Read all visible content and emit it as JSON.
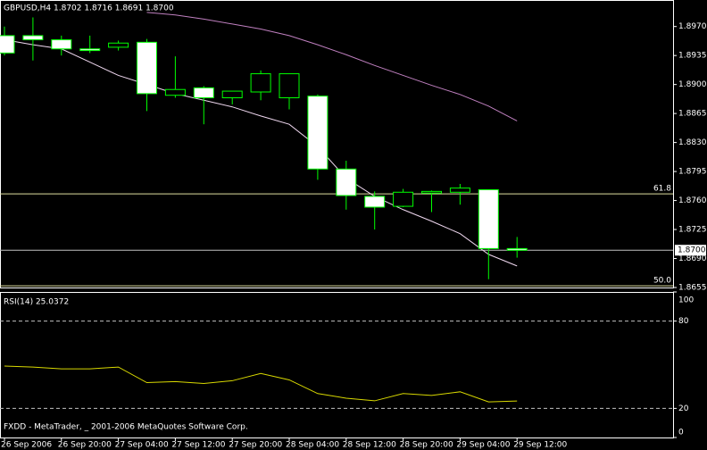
{
  "chart_data": [
    {
      "type": "candlestick",
      "title": "GBPUSD,H4  1.8702 1.8716 1.8691 1.8700",
      "categories": [
        "26 Sep 2006",
        null,
        "26 Sep 20:00",
        null,
        "27 Sep 04:00",
        null,
        "27 Sep 12:00",
        null,
        "27 Sep 20:00",
        null,
        "28 Sep 04:00",
        null,
        "28 Sep 12:00",
        null,
        "28 Sep 20:00",
        null,
        "29 Sep 04:00",
        null,
        "29 Sep 12:00"
      ],
      "open": [
        1.8959,
        1.8959,
        1.8954,
        1.8943,
        1.8945,
        1.8951,
        1.8887,
        1.8896,
        1.8884,
        1.8891,
        1.8884,
        1.8886,
        1.8798,
        1.8765,
        1.8753,
        1.8769,
        1.877,
        1.8773,
        1.8702
      ],
      "high": [
        1.897,
        1.8981,
        1.8959,
        1.8959,
        1.8953,
        1.8955,
        1.8934,
        1.8898,
        1.8892,
        1.8917,
        1.8913,
        1.8888,
        1.8808,
        1.8771,
        1.8774,
        1.8772,
        1.878,
        1.8773,
        1.8716
      ],
      "low": [
        1.8935,
        1.8929,
        1.8935,
        1.8938,
        1.8941,
        1.8868,
        1.8884,
        1.8852,
        1.8876,
        1.8881,
        1.887,
        1.8785,
        1.8749,
        1.8725,
        1.8752,
        1.8746,
        1.8755,
        1.8665,
        1.8691
      ],
      "close": [
        1.8938,
        1.8954,
        1.8943,
        1.8941,
        1.895,
        1.8889,
        1.8894,
        1.8884,
        1.8892,
        1.8913,
        1.8913,
        1.8798,
        1.8766,
        1.8752,
        1.877,
        1.8771,
        1.8775,
        1.8702,
        1.87
      ],
      "up_color": "#000000",
      "down_color": "#ffffff",
      "outline_color": "#00ff00",
      "series": [
        {
          "color": "#c080c0",
          "values": [
            null,
            null,
            null,
            null,
            null,
            1.8987,
            1.8984,
            1.8979,
            1.8973,
            1.8967,
            1.8959,
            1.8948,
            1.8936,
            1.8923,
            1.8911,
            1.8899,
            1.8888,
            1.8874,
            1.8856
          ]
        },
        {
          "color": "#f0d8f0",
          "values": [
            1.8954,
            1.8948,
            1.8943,
            1.8927,
            1.8911,
            1.89,
            1.8889,
            1.8881,
            1.8873,
            1.8862,
            1.8852,
            1.8825,
            1.8787,
            1.8765,
            1.8749,
            1.8735,
            1.872,
            1.8695,
            1.8681
          ]
        }
      ],
      "levels": [
        {
          "value": 1.8768,
          "label": "61.8"
        },
        {
          "value": 1.8657,
          "label": "50.0"
        }
      ],
      "level_color": "#e0e0a0",
      "price_line": {
        "value": 1.87,
        "label": "1.8700"
      },
      "ylim": [
        1.8655,
        1.9002
      ],
      "yticks": [
        {
          "value": 1.897,
          "label": "1.8970"
        },
        {
          "value": 1.8935,
          "label": "1.8935"
        },
        {
          "value": 1.89,
          "label": "1.8900"
        },
        {
          "value": 1.8865,
          "label": "1.8865"
        },
        {
          "value": 1.883,
          "label": "1.8830"
        },
        {
          "value": 1.8795,
          "label": "1.8795"
        },
        {
          "value": 1.876,
          "label": "1.8760"
        },
        {
          "value": 1.8725,
          "label": "1.8725"
        },
        {
          "value": 1.869,
          "label": "1.8690"
        },
        {
          "value": 1.8655,
          "label": "1.8655"
        }
      ]
    },
    {
      "type": "line",
      "title": "RSI(14) 25.0372",
      "color": "#d8d800",
      "values": [
        49.1,
        48.4,
        47.2,
        47.2,
        48.4,
        37.7,
        38.4,
        37.1,
        39.0,
        44.0,
        39.6,
        30.2,
        27.0,
        25.2,
        30.2,
        28.9,
        31.4,
        24.5,
        25.04
      ],
      "ylim": [
        0,
        100
      ],
      "yticks": [
        100,
        80,
        20,
        0
      ],
      "levels": [
        80,
        20
      ],
      "annotation": "FXDD - MetaTrader, _ 2001-2006 MetaQuotes Software Corp."
    }
  ]
}
